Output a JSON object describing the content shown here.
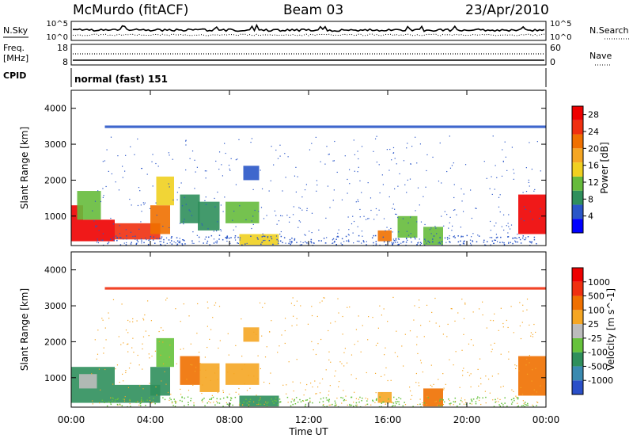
{
  "header": {
    "station": "McMurdo (fitACF)",
    "beam": "Beam 03",
    "date": "23/Apr/2010"
  },
  "noise_panel": {
    "left_label": "N.Sky",
    "left_ticks": [
      "10^5",
      "10^0"
    ],
    "right_label": "N.Search",
    "right_ticks": [
      "10^5",
      "10^0"
    ]
  },
  "freq_panel": {
    "left_label_line1": "Freq.",
    "left_label_line2": "[MHz]",
    "left_ticks": [
      "18",
      "8"
    ],
    "right_label": "Nave",
    "right_ticks": [
      "60",
      "0"
    ]
  },
  "cpid_panel": {
    "label": "CPID",
    "mode_text": "normal (fast) 151"
  },
  "chart_data": [
    {
      "type": "heatmap",
      "title": "Power",
      "xlabel": "Time UT",
      "ylabel": "Slant Range [km]",
      "x_ticks": [
        "00:00",
        "04:00",
        "08:00",
        "12:00",
        "16:00",
        "20:00",
        "00:00"
      ],
      "xlim_hours": [
        0,
        24
      ],
      "ylim": [
        180,
        4500
      ],
      "y_ticks": [
        1000,
        2000,
        3000,
        4000
      ],
      "colorbar": {
        "label": "Power [dB]",
        "ticks": [
          4,
          8,
          12,
          16,
          20,
          24,
          28
        ],
        "range": [
          0,
          30
        ],
        "colors": [
          "#0000ff",
          "#2a56c8",
          "#2f8f5c",
          "#66bb3c",
          "#f0d020",
          "#f5a623",
          "#f07000",
          "#f03010",
          "#ee0000"
        ]
      },
      "regions": [
        {
          "t": [
            0.0,
            0.6
          ],
          "r": [
            300,
            1300
          ],
          "level": 27
        },
        {
          "t": [
            0.6,
            2.2
          ],
          "r": [
            300,
            900
          ],
          "level": 27
        },
        {
          "t": [
            2.2,
            4.5
          ],
          "r": [
            350,
            800
          ],
          "level": 26
        },
        {
          "t": [
            4.0,
            5.0
          ],
          "r": [
            500,
            1300
          ],
          "level": 22
        },
        {
          "t": [
            0.3,
            1.5
          ],
          "r": [
            900,
            1700
          ],
          "level": 10
        },
        {
          "t": [
            4.3,
            5.2
          ],
          "r": [
            1300,
            2100
          ],
          "level": 15
        },
        {
          "t": [
            5.5,
            6.5
          ],
          "r": [
            800,
            1600
          ],
          "level": 9
        },
        {
          "t": [
            6.4,
            7.5
          ],
          "r": [
            600,
            1400
          ],
          "level": 7
        },
        {
          "t": [
            7.8,
            9.5
          ],
          "r": [
            800,
            1400
          ],
          "level": 10
        },
        {
          "t": [
            8.7,
            9.5
          ],
          "r": [
            2000,
            2400
          ],
          "level": 6
        },
        {
          "t": [
            8.5,
            10.5
          ],
          "r": [
            200,
            500
          ],
          "level": 14
        },
        {
          "t": [
            15.5,
            16.2
          ],
          "r": [
            300,
            600
          ],
          "level": 20
        },
        {
          "t": [
            16.5,
            17.5
          ],
          "r": [
            400,
            1000
          ],
          "level": 11
        },
        {
          "t": [
            17.8,
            18.8
          ],
          "r": [
            200,
            700
          ],
          "level": 12
        },
        {
          "t": [
            22.6,
            24.0
          ],
          "r": [
            500,
            1600
          ],
          "level": 27
        },
        {
          "t": [
            1.7,
            24.0
          ],
          "r": [
            3450,
            3520
          ],
          "level": 4
        }
      ]
    },
    {
      "type": "heatmap",
      "title": "Velocity",
      "xlabel": "Time UT",
      "ylabel": "Slant Range [km]",
      "x_ticks": [
        "00:00",
        "04:00",
        "08:00",
        "12:00",
        "16:00",
        "20:00",
        "00:00"
      ],
      "xlim_hours": [
        0,
        24
      ],
      "ylim": [
        180,
        4500
      ],
      "y_ticks": [
        1000,
        2000,
        3000,
        4000
      ],
      "colorbar": {
        "label": "Velocity [m s^-1]",
        "ticks": [
          "1000",
          "500",
          "100",
          "25",
          "-25",
          "-100",
          "-500",
          "-1000"
        ],
        "colors": [
          "#2a4fc8",
          "#3a8ab0",
          "#2f8f5c",
          "#66c23c",
          "#bcbcbc",
          "#f5a623",
          "#f07000",
          "#f03010",
          "#ee0000"
        ]
      },
      "regions": [
        {
          "t": [
            0.0,
            2.2
          ],
          "r": [
            300,
            1300
          ],
          "class": 2
        },
        {
          "t": [
            2.2,
            4.5
          ],
          "r": [
            300,
            800
          ],
          "class": 2
        },
        {
          "t": [
            0.4,
            1.3
          ],
          "r": [
            700,
            1100
          ],
          "class": 4
        },
        {
          "t": [
            4.0,
            5.0
          ],
          "r": [
            500,
            1300
          ],
          "class": 2
        },
        {
          "t": [
            4.3,
            5.2
          ],
          "r": [
            1300,
            2100
          ],
          "class": 3
        },
        {
          "t": [
            5.5,
            6.5
          ],
          "r": [
            800,
            1600
          ],
          "class": 6
        },
        {
          "t": [
            6.5,
            7.5
          ],
          "r": [
            600,
            1400
          ],
          "class": 5
        },
        {
          "t": [
            7.8,
            9.5
          ],
          "r": [
            800,
            1400
          ],
          "class": 5
        },
        {
          "t": [
            8.7,
            9.5
          ],
          "r": [
            2000,
            2400
          ],
          "class": 5
        },
        {
          "t": [
            8.5,
            10.5
          ],
          "r": [
            200,
            500
          ],
          "class": 2
        },
        {
          "t": [
            15.5,
            16.2
          ],
          "r": [
            300,
            600
          ],
          "class": 5
        },
        {
          "t": [
            17.8,
            18.8
          ],
          "r": [
            200,
            700
          ],
          "class": 6
        },
        {
          "t": [
            22.6,
            24.0
          ],
          "r": [
            500,
            1600
          ],
          "class": 6
        },
        {
          "t": [
            1.7,
            24.0
          ],
          "r": [
            3450,
            3520
          ],
          "class": 7
        }
      ]
    }
  ]
}
